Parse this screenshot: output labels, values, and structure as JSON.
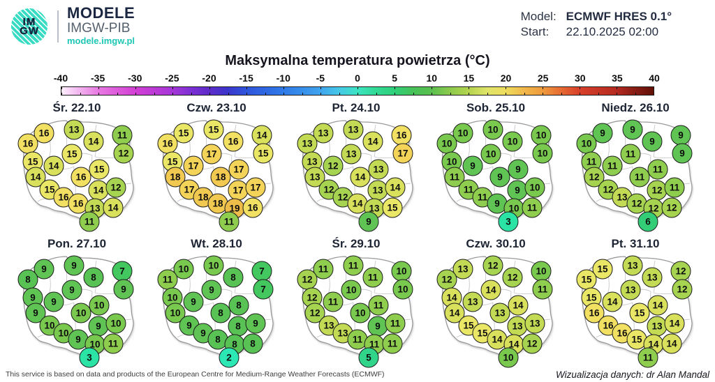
{
  "header": {
    "logo_line1": "IM",
    "logo_line2": "GW",
    "brand": "MODELE",
    "brand_sub": "IMGW-PIB",
    "brand_url": "modele.imgw.pl",
    "model_label": "Model:",
    "model_value": "ECMWF HRES 0.1°",
    "start_label": "Start:",
    "start_value": "22.10.2025 02:00"
  },
  "title": "Maksymalna temperatura powietrza (°C)",
  "colorbar": {
    "tick_labels": [
      "-40",
      "-35",
      "-30",
      "-25",
      "-20",
      "-15",
      "-10",
      "-5",
      "0",
      "5",
      "10",
      "15",
      "20",
      "25",
      "30",
      "35",
      "40"
    ]
  },
  "temp_colors": {
    "2": "#2be8b4",
    "3": "#2ce3a6",
    "5": "#30d589",
    "6": "#33cd77",
    "7": "#43c75f",
    "8": "#58c255",
    "9": "#60c455",
    "10": "#79c94f",
    "11": "#8ecd4e",
    "12": "#a6d350",
    "13": "#c3da55",
    "14": "#d8e05c",
    "15": "#eae766",
    "16": "#f2e062",
    "17": "#f3d458",
    "18": "#f1c850",
    "19": "#eebc48"
  },
  "stations": [
    [
      53,
      46
    ],
    [
      96,
      41
    ],
    [
      165,
      49
    ],
    [
      30,
      61
    ],
    [
      124,
      58
    ],
    [
      167,
      75
    ],
    [
      93,
      76
    ],
    [
      37,
      87
    ],
    [
      67,
      93
    ],
    [
      132,
      98
    ],
    [
      41,
      109
    ],
    [
      106,
      109
    ],
    [
      61,
      127
    ],
    [
      131,
      128
    ],
    [
      156,
      124
    ],
    [
      81,
      138
    ],
    [
      102,
      147
    ],
    [
      126,
      154
    ],
    [
      152,
      153
    ],
    [
      118,
      173
    ]
  ],
  "maps": [
    {
      "label": "Śr. 22.10",
      "values": [
        16,
        13,
        11,
        16,
        14,
        12,
        15,
        15,
        14,
        15,
        14,
        16,
        15,
        14,
        12,
        16,
        16,
        13,
        14,
        11
      ]
    },
    {
      "label": "Czw. 23.10",
      "values": [
        15,
        15,
        14,
        16,
        16,
        15,
        17,
        15,
        17,
        17,
        18,
        18,
        17,
        17,
        17,
        18,
        18,
        19,
        16,
        11
      ]
    },
    {
      "label": "Pt. 24.10",
      "values": [
        13,
        13,
        16,
        13,
        14,
        17,
        13,
        13,
        12,
        13,
        13,
        14,
        12,
        13,
        14,
        12,
        14,
        13,
        15,
        9
      ]
    },
    {
      "label": "Sob. 25.10",
      "values": [
        10,
        10,
        10,
        10,
        10,
        10,
        10,
        10,
        9,
        9,
        11,
        9,
        11,
        9,
        10,
        11,
        9,
        10,
        11,
        3
      ]
    },
    {
      "label": "Niedz. 26.10",
      "values": [
        9,
        9,
        9,
        10,
        9,
        9,
        11,
        11,
        11,
        11,
        12,
        11,
        12,
        12,
        11,
        13,
        12,
        12,
        12,
        6
      ]
    },
    {
      "label": "Pon. 27.10",
      "values": [
        9,
        9,
        7,
        8,
        8,
        9,
        9,
        9,
        9,
        10,
        9,
        10,
        10,
        9,
        10,
        10,
        9,
        10,
        11,
        3
      ]
    },
    {
      "label": "Wt. 28.10",
      "values": [
        10,
        10,
        7,
        11,
        8,
        7,
        9,
        10,
        9,
        8,
        10,
        8,
        9,
        8,
        9,
        9,
        8,
        8,
        8,
        2
      ]
    },
    {
      "label": "Śr. 29.10",
      "values": [
        11,
        11,
        10,
        12,
        11,
        10,
        10,
        12,
        11,
        11,
        12,
        10,
        13,
        9,
        11,
        13,
        11,
        11,
        11,
        5
      ]
    },
    {
      "label": "Czw. 30.10",
      "values": [
        13,
        12,
        10,
        12,
        12,
        11,
        14,
        14,
        13,
        14,
        14,
        13,
        15,
        13,
        13,
        15,
        14,
        14,
        12,
        10
      ]
    },
    {
      "label": "Pt. 31.10",
      "values": [
        15,
        13,
        12,
        15,
        13,
        12,
        13,
        15,
        14,
        14,
        16,
        15,
        16,
        13,
        14,
        16,
        15,
        14,
        14,
        11
      ]
    }
  ],
  "footer": {
    "left": "This service is based on data and products of the European Centre for Medium-Range Weather Forecasts (ECMWF)",
    "right": "Wizualizacja danych: dr Alan Mandal"
  }
}
